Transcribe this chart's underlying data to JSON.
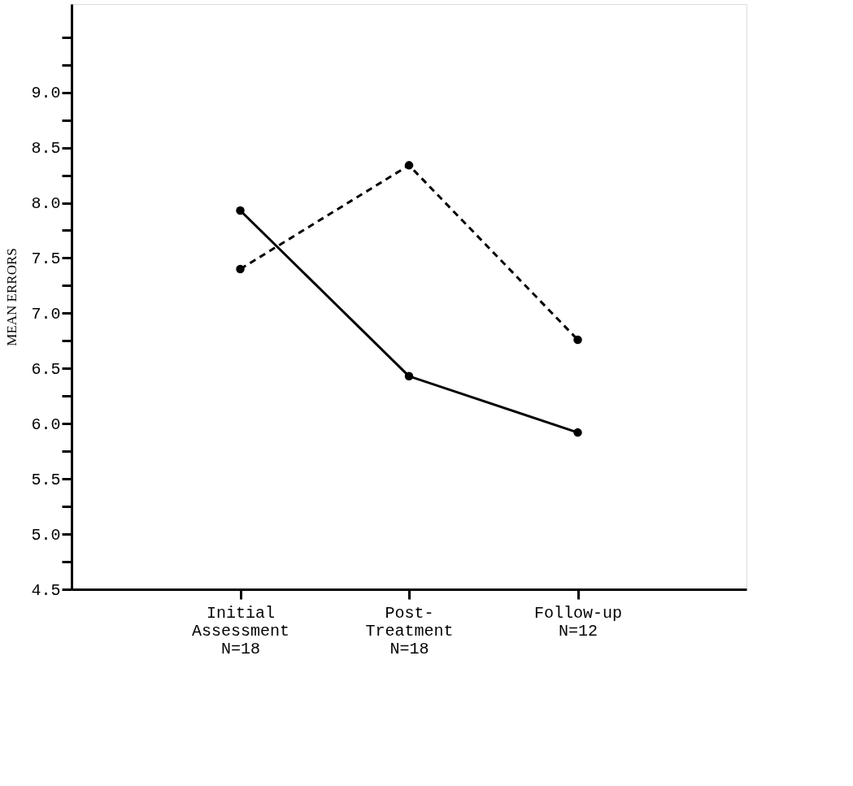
{
  "chart_data": {
    "type": "line",
    "ylabel": "MEAN ERRORS",
    "categories": [
      "Initial\nAssessment\nN=18",
      "Post-\nTreatment\nN=18",
      "Follow-up\nN=12"
    ],
    "series": [
      {
        "color": "#000000",
        "line_style": "solid",
        "values": [
          7.93,
          6.43,
          5.92
        ]
      },
      {
        "color": "#000000",
        "line_style": "dashed",
        "values": [
          7.4,
          8.34,
          6.76
        ]
      }
    ],
    "ylim": [
      4.5,
      9.8
    ],
    "yticks": [
      {
        "value": 4.5,
        "label": "4.5"
      },
      {
        "value": 4.75,
        "label": null
      },
      {
        "value": 5.0,
        "label": "5.0"
      },
      {
        "value": 5.25,
        "label": null
      },
      {
        "value": 5.5,
        "label": "5.5"
      },
      {
        "value": 5.75,
        "label": null
      },
      {
        "value": 6.0,
        "label": "6.0"
      },
      {
        "value": 6.25,
        "label": null
      },
      {
        "value": 6.5,
        "label": "6.5"
      },
      {
        "value": 6.75,
        "label": null
      },
      {
        "value": 7.0,
        "label": "7.0"
      },
      {
        "value": 7.25,
        "label": null
      },
      {
        "value": 7.5,
        "label": "7.5"
      },
      {
        "value": 7.75,
        "label": null
      },
      {
        "value": 8.0,
        "label": "8.0"
      },
      {
        "value": 8.25,
        "label": null
      },
      {
        "value": 8.5,
        "label": "8.5"
      },
      {
        "value": 8.75,
        "label": null
      },
      {
        "value": 9.0,
        "label": "9.0"
      },
      {
        "value": 9.25,
        "label": null
      },
      {
        "value": 9.5,
        "label": null
      }
    ],
    "grid": false,
    "legend": false,
    "marker": "circle"
  }
}
